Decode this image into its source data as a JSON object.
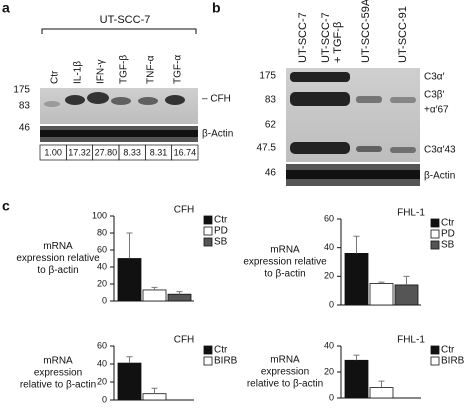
{
  "panel_a": {
    "label": "a",
    "cell_line": "UT-SCC-7",
    "lanes": [
      "Ctr",
      "IL-1β",
      "IFN-γ",
      "TGF-β",
      "TNF-α",
      "TGF-α"
    ],
    "markers": [
      "175",
      "83",
      "46"
    ],
    "band_labels": [
      "– CFH",
      "β-Actin"
    ],
    "quantification": [
      "1.00",
      "17.32",
      "27.80",
      "8.33",
      "8.31",
      "16.74"
    ]
  },
  "panel_b": {
    "label": "b",
    "lanes": [
      "UT-SCC-7",
      "UT-SCC-7",
      "+ TGF-β",
      "UT-SCC-59A",
      "UT-SCC-91"
    ],
    "markers": [
      "175",
      "83",
      "62",
      "47.5",
      "46"
    ],
    "band_labels": [
      "C3α′",
      "C3β′",
      "+α′67",
      "C3α′43",
      "β-Actin"
    ]
  },
  "panel_c": {
    "label": "c"
  },
  "chart_data": [
    {
      "type": "bar",
      "title": "CFH",
      "ylabel": [
        "mRNA",
        "expression relative",
        "to β-actin"
      ],
      "ylim": [
        0,
        100
      ],
      "yticks": [
        0,
        20,
        40,
        60,
        80,
        100
      ],
      "series": [
        {
          "name": "Ctr",
          "color": "#111111",
          "values": [
            50
          ],
          "errors": [
            30
          ]
        },
        {
          "name": "PD",
          "color": "#ffffff",
          "values": [
            13
          ],
          "errors": [
            3
          ]
        },
        {
          "name": "SB",
          "color": "#555555",
          "values": [
            8
          ],
          "errors": [
            3
          ]
        }
      ]
    },
    {
      "type": "bar",
      "title": "FHL-1",
      "ylabel": [
        "mRNA",
        "expression relative",
        "to β-actin"
      ],
      "ylim": [
        0,
        60
      ],
      "yticks": [
        0,
        20,
        40,
        60
      ],
      "series": [
        {
          "name": "Ctr",
          "color": "#111111",
          "values": [
            36
          ],
          "errors": [
            12
          ]
        },
        {
          "name": "PD",
          "color": "#ffffff",
          "values": [
            15
          ],
          "errors": [
            1
          ]
        },
        {
          "name": "SB",
          "color": "#555555",
          "values": [
            14
          ],
          "errors": [
            6
          ]
        }
      ]
    },
    {
      "type": "bar",
      "title": "CFH",
      "ylabel": [
        "mRNA",
        "expression",
        "relative to β-actin"
      ],
      "ylim": [
        0,
        60
      ],
      "yticks": [
        0,
        20,
        40,
        60
      ],
      "series": [
        {
          "name": "Ctr",
          "color": "#111111",
          "values": [
            41
          ],
          "errors": [
            7
          ]
        },
        {
          "name": "BIRB",
          "color": "#ffffff",
          "values": [
            7
          ],
          "errors": [
            6
          ]
        }
      ]
    },
    {
      "type": "bar",
      "title": "FHL-1",
      "ylabel": [
        "mRNA",
        "expression",
        "relative to β-actin"
      ],
      "ylim": [
        0,
        40
      ],
      "yticks": [
        0,
        20,
        40
      ],
      "series": [
        {
          "name": "Ctr",
          "color": "#111111",
          "values": [
            29
          ],
          "errors": [
            4
          ]
        },
        {
          "name": "BIRB",
          "color": "#ffffff",
          "values": [
            8
          ],
          "errors": [
            5
          ]
        }
      ]
    }
  ]
}
